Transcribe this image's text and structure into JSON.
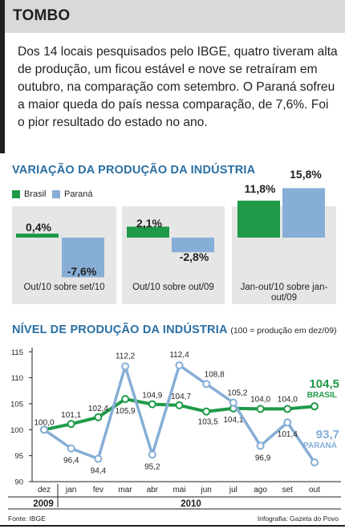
{
  "headline": "TOMBO",
  "intro": "Dos 14 locais pesquisados pelo IBGE, quatro tiveram alta de produção, um ficou estável e nove se retraíram em outubro, na comparação com setembro. O Paraná sofreu a maior queda do país nessa comparação, de 7,6%. Foi o pior resultado do estado no ano.",
  "colors": {
    "brasil": "#1e9a48",
    "parana": "#86aed6",
    "title": "#2a6fa3",
    "panel": "#e6e6e6"
  },
  "chart_data": [
    {
      "type": "bar",
      "title": "VARIAÇÃO DA PRODUÇÃO DA INDÚSTRIA",
      "legend": [
        "Brasil",
        "Paraná"
      ],
      "categories": [
        "Out/10 sobre set/10",
        "Out/10 sobre out/09",
        "Jan-out/10 sobre jan-out/09"
      ],
      "series": [
        {
          "name": "Brasil",
          "values": [
            0.4,
            2.1,
            11.8
          ],
          "labels": [
            "0,4%",
            "2,1%",
            "11,8%"
          ]
        },
        {
          "name": "Paraná",
          "values": [
            -7.6,
            -2.8,
            15.8
          ],
          "labels": [
            "-7,6%",
            "-2,8%",
            "15,8%"
          ]
        }
      ],
      "unit": "%"
    },
    {
      "type": "line",
      "title": "NÍVEL DE PRODUÇÃO DA INDÚSTRIA",
      "subtitle": "(100 = produção em dez/09)",
      "x": [
        "dez",
        "jan",
        "fev",
        "mar",
        "abr",
        "mai",
        "jun",
        "jul",
        "ago",
        "set",
        "out"
      ],
      "year_labels": [
        "2009",
        "2010"
      ],
      "ylim": [
        90,
        116
      ],
      "yticks": [
        90,
        95,
        100,
        105,
        110,
        115
      ],
      "grid": false,
      "series": [
        {
          "name": "BRASIL",
          "end_value_label": "104,5",
          "values": [
            100.0,
            101.1,
            102.4,
            105.9,
            104.9,
            104.7,
            103.5,
            104.1,
            104.0,
            104.0,
            104.5
          ],
          "labels": [
            "100,0",
            "101,1",
            "102,4",
            "105,9",
            "104,9",
            "104,7",
            "103,5",
            "104,1",
            "104,0",
            "104,0",
            ""
          ]
        },
        {
          "name": "PARANÁ",
          "end_value_label": "93,7",
          "values": [
            100.0,
            96.4,
            94.4,
            112.2,
            95.2,
            112.4,
            108.8,
            105.2,
            96.9,
            101.4,
            93.7
          ],
          "labels": [
            "",
            "96,4",
            "94,4",
            "112,2",
            "95,2",
            "112,4",
            "108,8",
            "105,2",
            "96,9",
            "101,4",
            ""
          ]
        }
      ]
    }
  ],
  "footer": {
    "source": "Fonte: IBGE",
    "credit": "Infografia: Gazeta do Povo"
  }
}
